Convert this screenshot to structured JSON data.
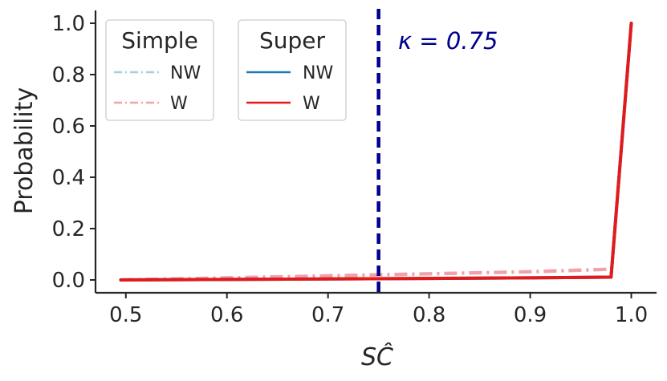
{
  "chart_data": {
    "type": "line",
    "xlabel": "SĈ",
    "ylabel": "Probability",
    "xlim": [
      0.47,
      1.025
    ],
    "ylim": [
      -0.05,
      1.05
    ],
    "xticks": [
      0.5,
      0.6,
      0.7,
      0.8,
      0.9,
      1.0
    ],
    "xtick_labels": [
      "0.5",
      "0.6",
      "0.7",
      "0.8",
      "0.9",
      "1.0"
    ],
    "yticks": [
      0.0,
      0.2,
      0.4,
      0.6,
      0.8,
      1.0
    ],
    "ytick_labels": [
      "0.0",
      "0.2",
      "0.4",
      "0.6",
      "0.8",
      "1.0"
    ],
    "grid": false,
    "threshold": {
      "x": 0.75,
      "label": "κ = 0.75",
      "color": "#00008b",
      "style": "dashed"
    },
    "legends": [
      {
        "title": "Simple",
        "placement": "top-left",
        "entries": [
          "NW",
          "W"
        ]
      },
      {
        "title": "Super",
        "placement": "top-center",
        "entries": [
          "NW",
          "W"
        ]
      }
    ],
    "series": [
      {
        "name": "NW",
        "group": "Simple",
        "style": "dashdot",
        "color": "#a6cee3",
        "x": [
          0.495,
          0.6,
          0.7,
          0.8,
          0.9,
          0.98
        ],
        "y": [
          0.0,
          0.008,
          0.016,
          0.024,
          0.032,
          0.042
        ]
      },
      {
        "name": "W",
        "group": "Simple",
        "style": "dashdot",
        "color": "#f4a0a8",
        "x": [
          0.495,
          0.6,
          0.7,
          0.8,
          0.9,
          0.98
        ],
        "y": [
          0.0,
          0.008,
          0.016,
          0.024,
          0.032,
          0.042
        ]
      },
      {
        "name": "NW",
        "group": "Super",
        "style": "solid",
        "color": "#1f78b4",
        "x": [
          0.495,
          0.6,
          0.7,
          0.8,
          0.9,
          0.98,
          1.0
        ],
        "y": [
          0.0,
          0.002,
          0.004,
          0.006,
          0.008,
          0.011,
          1.0
        ]
      },
      {
        "name": "W",
        "group": "Super",
        "style": "solid",
        "color": "#e31a1c",
        "x": [
          0.495,
          0.6,
          0.7,
          0.8,
          0.9,
          0.98,
          1.0
        ],
        "y": [
          0.0,
          0.002,
          0.004,
          0.006,
          0.008,
          0.011,
          1.0
        ]
      }
    ]
  }
}
